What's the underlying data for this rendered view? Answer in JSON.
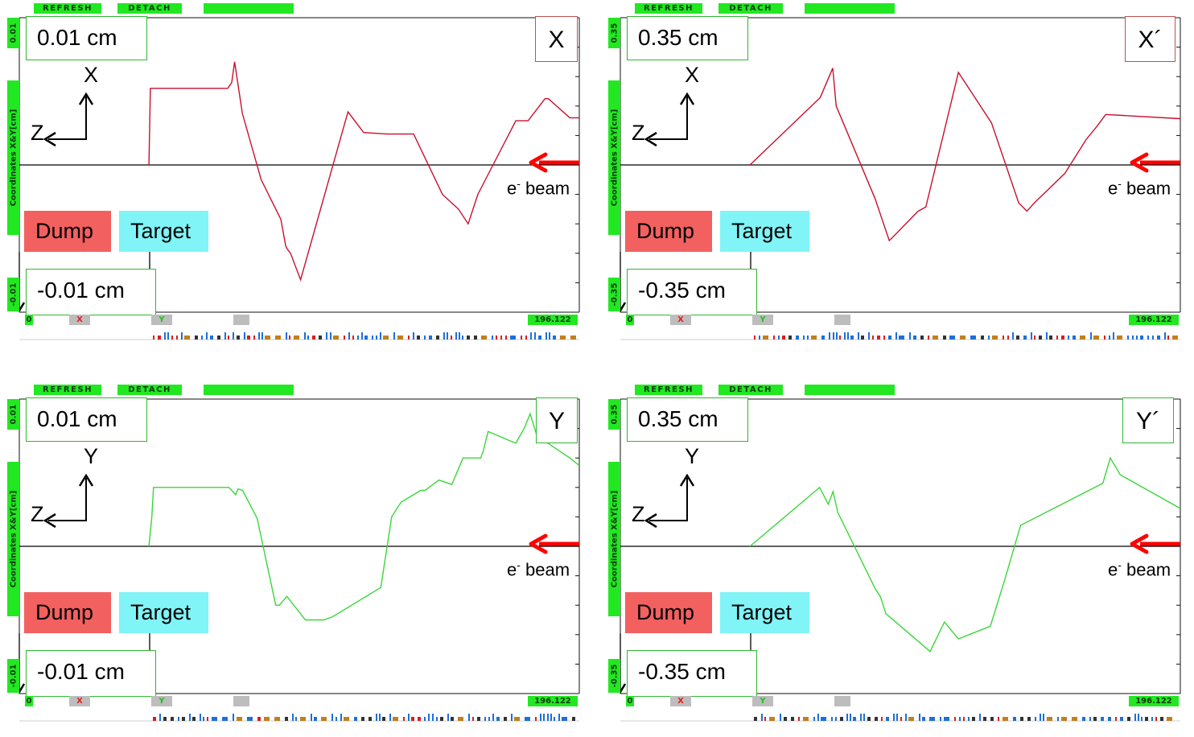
{
  "colors": {
    "x_trace": "#c8102e",
    "y_trace": "#3ad63a",
    "dump": "#f26060",
    "target": "#80f4f6",
    "beam_arrow": "#ff0000",
    "button_green": "#22e822"
  },
  "toolbar": {
    "refresh_label": "REFRESH",
    "detach_label": "DETACH"
  },
  "panels": [
    {
      "title": "X",
      "scale_top": "0.01 cm",
      "scale_bottom": "-0.01 cm",
      "side_top": "0.01",
      "side_axis": "Coordinates  X&Y[cm]",
      "side_bottom": "-0.01",
      "axis_vertical": "X",
      "axis_horizontal": "Z",
      "dump_label": "Dump",
      "target_label": "Target",
      "beam_label": "e",
      "beam_sup": "-",
      "beam_word": " beam",
      "bottom_zero": "0",
      "bottom_x": "X",
      "bottom_y": "Y",
      "bottom_value": "196.122"
    },
    {
      "title": "X´",
      "scale_top": "0.35 cm",
      "scale_bottom": "-0.35 cm",
      "side_top": "0.35",
      "side_axis": "Coordinates  X&Y[cm]",
      "side_bottom": "-0.35",
      "axis_vertical": "X",
      "axis_horizontal": "Z",
      "dump_label": "Dump",
      "target_label": "Target",
      "beam_label": "e",
      "beam_sup": "-",
      "beam_word": " beam",
      "bottom_zero": "0",
      "bottom_x": "X",
      "bottom_y": "Y",
      "bottom_value": "196.122"
    },
    {
      "title": "Y",
      "scale_top": "0.01 cm",
      "scale_bottom": "-0.01 cm",
      "side_top": "0.01",
      "side_axis": "Coordinates  X&Y[cm]",
      "side_bottom": "-0.01",
      "axis_vertical": "Y",
      "axis_horizontal": "Z",
      "dump_label": "Dump",
      "target_label": "Target",
      "beam_label": "e",
      "beam_sup": "-",
      "beam_word": " beam",
      "bottom_zero": "0",
      "bottom_x": "X",
      "bottom_y": "Y",
      "bottom_value": "196.122"
    },
    {
      "title": "Y´",
      "scale_top": "0.35 cm",
      "scale_bottom": "-0.35 cm",
      "side_top": "0.35",
      "side_axis": "Coordinates  X&Y[cm]",
      "side_bottom": "-0.35",
      "axis_vertical": "Y",
      "axis_horizontal": "Z",
      "dump_label": "Dump",
      "target_label": "Target",
      "beam_label": "e",
      "beam_sup": "-",
      "beam_word": " beam",
      "bottom_zero": "0",
      "bottom_x": "X",
      "bottom_y": "Y",
      "bottom_value": "196.122"
    }
  ],
  "chart_data": [
    {
      "type": "line",
      "title": "X",
      "xlim": [
        0,
        196.122
      ],
      "ylim": [
        -0.01,
        0.01
      ],
      "series": [
        {
          "color": "#c8102e",
          "x": [
            45.4,
            45.9,
            73.0,
            74.4,
            75.4,
            78.1,
            84.7,
            91.6,
            93.3,
            93.8,
            95.0,
            98.5,
            115.1,
            120.6,
            128.7,
            138.1,
            148.2,
            153.8,
            157.2,
            160.6,
            173.9,
            178.2,
            184.1,
            185.3,
            192.8,
            196.1
          ],
          "y": [
            0.0,
            0.0052,
            0.0052,
            0.0056,
            0.007,
            0.0035,
            -0.001,
            -0.0037,
            -0.0055,
            -0.0057,
            -0.006,
            -0.0078,
            0.0036,
            0.0022,
            0.0021,
            0.0021,
            -0.002,
            -0.003,
            -0.004,
            -0.002,
            0.003,
            0.003,
            0.0045,
            0.0045,
            0.0032,
            0.0032
          ]
        }
      ]
    },
    {
      "type": "line",
      "title": "X´",
      "xlim": [
        0,
        196.122
      ],
      "ylim": [
        -0.35,
        0.35
      ],
      "series": [
        {
          "color": "#c8102e",
          "x": [
            45.4,
            70.0,
            74.4,
            75.6,
            89.2,
            94.2,
            104.3,
            107.0,
            118.4,
            130.0,
            139.5,
            142.4,
            145.0,
            155.7,
            163.1,
            166.7,
            170.0,
            196.1
          ],
          "y": [
            0.0,
            0.16,
            0.23,
            0.14,
            -0.08,
            -0.18,
            -0.11,
            -0.1,
            0.22,
            0.1,
            -0.09,
            -0.11,
            -0.09,
            -0.02,
            0.06,
            0.09,
            0.12,
            0.11
          ]
        }
      ]
    },
    {
      "type": "line",
      "title": "Y",
      "xlim": [
        0,
        196.122
      ],
      "ylim": [
        -0.01,
        0.01
      ],
      "series": [
        {
          "color": "#3ad63a",
          "x": [
            45.4,
            46.4,
            47.0,
            73.4,
            75.8,
            76.6,
            78.2,
            83.3,
            89.8,
            91.1,
            93.7,
            100.2,
            106.6,
            109.6,
            126.6,
            130.4,
            133.7,
            140.6,
            142.1,
            146.9,
            151.5,
            155.4,
            161.6,
            162.5,
            164.2,
            173.9,
            176.8,
            178.9,
            181.3,
            192.8,
            196.1
          ],
          "y": [
            0.0,
            0.002,
            0.004,
            0.004,
            0.0035,
            0.0039,
            0.0038,
            0.0019,
            -0.004,
            -0.004,
            -0.0034,
            -0.005,
            -0.005,
            -0.0048,
            -0.0028,
            0.002,
            0.003,
            0.0038,
            0.0038,
            0.0045,
            0.0042,
            0.006,
            0.006,
            0.0065,
            0.0078,
            0.007,
            0.008,
            0.009,
            0.0075,
            0.006,
            0.0055
          ]
        }
      ]
    },
    {
      "type": "line",
      "title": "Y´",
      "xlim": [
        0,
        196.122
      ],
      "ylim": [
        -0.35,
        0.35
      ],
      "series": [
        {
          "color": "#3ad63a",
          "x": [
            45.4,
            69.8,
            72.8,
            74.5,
            76.2,
            89.2,
            91.1,
            93.0,
            108.5,
            113.5,
            118.4,
            129.6,
            134.6,
            140.2,
            169.0,
            171.6,
            175.1,
            196.1
          ],
          "y": [
            0.0,
            0.14,
            0.1,
            0.13,
            0.08,
            -0.1,
            -0.12,
            -0.16,
            -0.25,
            -0.18,
            -0.22,
            -0.19,
            -0.08,
            0.05,
            0.15,
            0.21,
            0.17,
            0.09
          ]
        }
      ]
    }
  ]
}
